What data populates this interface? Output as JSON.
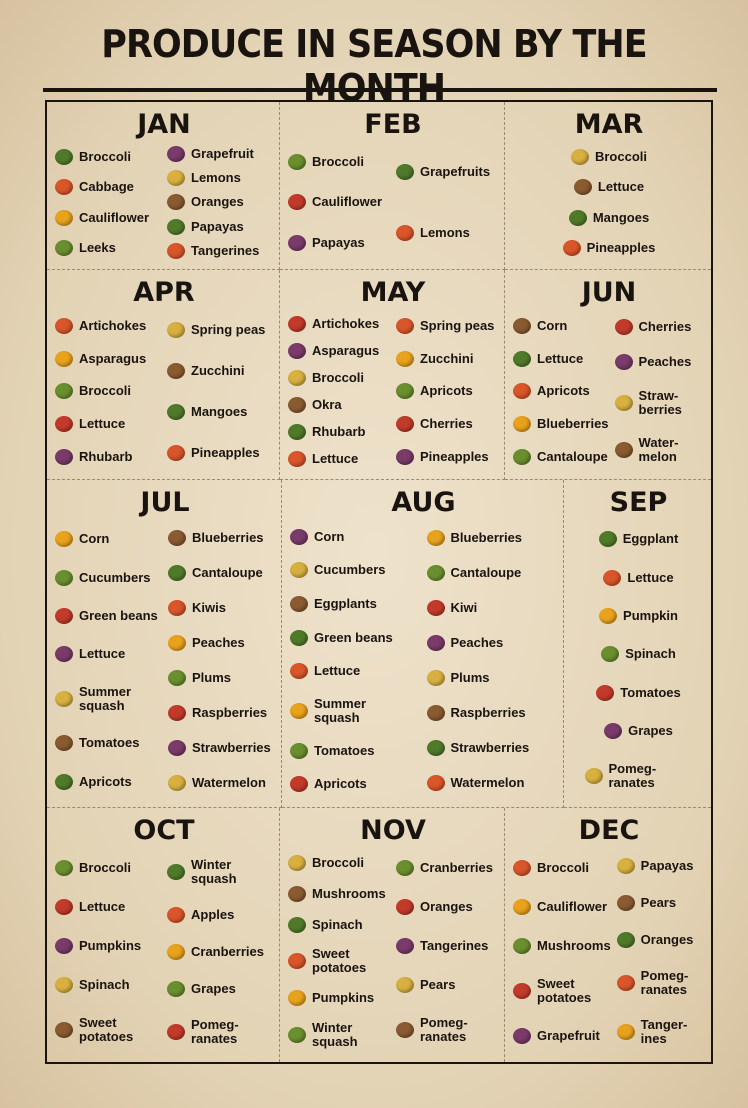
{
  "title": "PRODUCE IN SEASON BY THE MONTH",
  "months": [
    {
      "name": "JAN",
      "columns": [
        [
          "Broccoli",
          "Cabbage",
          "Cauliflower",
          "Leeks"
        ],
        [
          "Grapefruit",
          "Lemons",
          "Oranges",
          "Papayas",
          "Tangerines"
        ]
      ]
    },
    {
      "name": "FEB",
      "columns": [
        [
          "Broccoli",
          "Cauliflower",
          "Papayas"
        ],
        [
          "Grapefruits",
          "Lemons"
        ]
      ]
    },
    {
      "name": "MAR",
      "columns": [
        [
          "Broccoli",
          "Lettuce",
          "Mangoes",
          "Pineapples"
        ]
      ]
    },
    {
      "name": "APR",
      "columns": [
        [
          "Artichokes",
          "Asparagus",
          "Broccoli",
          "Lettuce",
          "Rhubarb"
        ],
        [
          "Spring peas",
          "Zucchini",
          "Mangoes",
          "Pineapples"
        ]
      ]
    },
    {
      "name": "MAY",
      "columns": [
        [
          "Artichokes",
          "Asparagus",
          "Broccoli",
          "Okra",
          "Rhubarb",
          "Lettuce"
        ],
        [
          "Spring peas",
          "Zucchini",
          "Apricots",
          "Cherries",
          "Pineapples"
        ]
      ]
    },
    {
      "name": "JUN",
      "columns": [
        [
          "Corn",
          "Lettuce",
          "Apricots",
          "Blueberries",
          "Cantaloupe"
        ],
        [
          "Cherries",
          "Peaches",
          "Straw-berries",
          "Water-melon"
        ]
      ]
    },
    {
      "name": "JUL",
      "columns": [
        [
          "Corn",
          "Cucumbers",
          "Green beans",
          "Lettuce",
          "Summer squash",
          "Tomatoes",
          "Apricots"
        ],
        [
          "Blueberries",
          "Cantaloupe",
          "Kiwis",
          "Peaches",
          "Plums",
          "Raspberries",
          "Strawberries",
          "Watermelon"
        ]
      ]
    },
    {
      "name": "AUG",
      "columns": [
        [
          "Corn",
          "Cucumbers",
          "Eggplants",
          "Green beans",
          "Lettuce",
          "Summer squash",
          "Tomatoes",
          "Apricots"
        ],
        [
          "Blueberries",
          "Cantaloupe",
          "Kiwi",
          "Peaches",
          "Plums",
          "Raspberries",
          "Strawberries",
          "Watermelon"
        ]
      ]
    },
    {
      "name": "SEP",
      "columns": [
        [
          "Eggplant",
          "Lettuce",
          "Pumpkin",
          "Spinach",
          "Tomatoes",
          "Grapes",
          "Pomeg-ranates"
        ]
      ]
    },
    {
      "name": "OCT",
      "columns": [
        [
          "Broccoli",
          "Lettuce",
          "Pumpkins",
          "Spinach",
          "Sweet potatoes"
        ],
        [
          "Winter squash",
          "Apples",
          "Cranberries",
          "Grapes",
          "Pomeg-ranates"
        ]
      ]
    },
    {
      "name": "NOV",
      "columns": [
        [
          "Broccoli",
          "Mushrooms",
          "Spinach",
          "Sweet potatoes",
          "Pumpkins",
          "Winter squash"
        ],
        [
          "Cranberries",
          "Oranges",
          "Tangerines",
          "Pears",
          "Pomeg-ranates"
        ]
      ]
    },
    {
      "name": "DEC",
      "columns": [
        [
          "Broccoli",
          "Cauliflower",
          "Mushrooms",
          "Sweet potatoes",
          "Grapefruit"
        ],
        [
          "Papayas",
          "Pears",
          "Oranges",
          "Pomeg-ranates",
          "Tanger-ines"
        ]
      ]
    }
  ]
}
